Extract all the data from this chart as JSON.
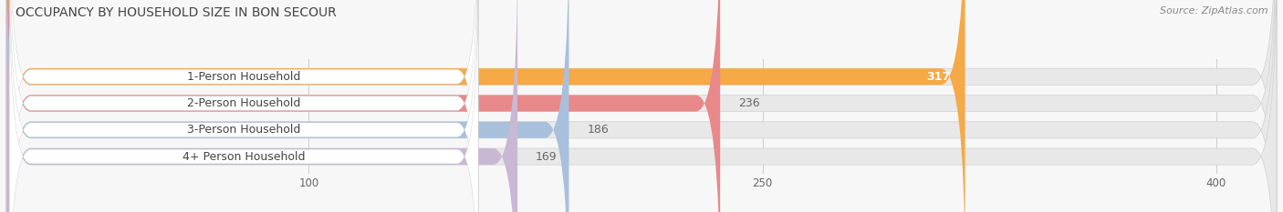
{
  "title": "OCCUPANCY BY HOUSEHOLD SIZE IN BON SECOUR",
  "source": "Source: ZipAtlas.com",
  "categories": [
    "1-Person Household",
    "2-Person Household",
    "3-Person Household",
    "4+ Person Household"
  ],
  "values": [
    317,
    236,
    186,
    169
  ],
  "bar_colors": [
    "#F5A947",
    "#E8888A",
    "#A8C0DC",
    "#C9B8D4"
  ],
  "value_inside": [
    true,
    false,
    false,
    false
  ],
  "xlim_max": 420,
  "xticks": [
    100,
    250,
    400
  ],
  "background_color": "#f7f7f7",
  "bar_background_color": "#e8e8e8",
  "title_fontsize": 10,
  "source_fontsize": 8,
  "cat_fontsize": 9,
  "value_fontsize": 9,
  "tick_fontsize": 8.5
}
